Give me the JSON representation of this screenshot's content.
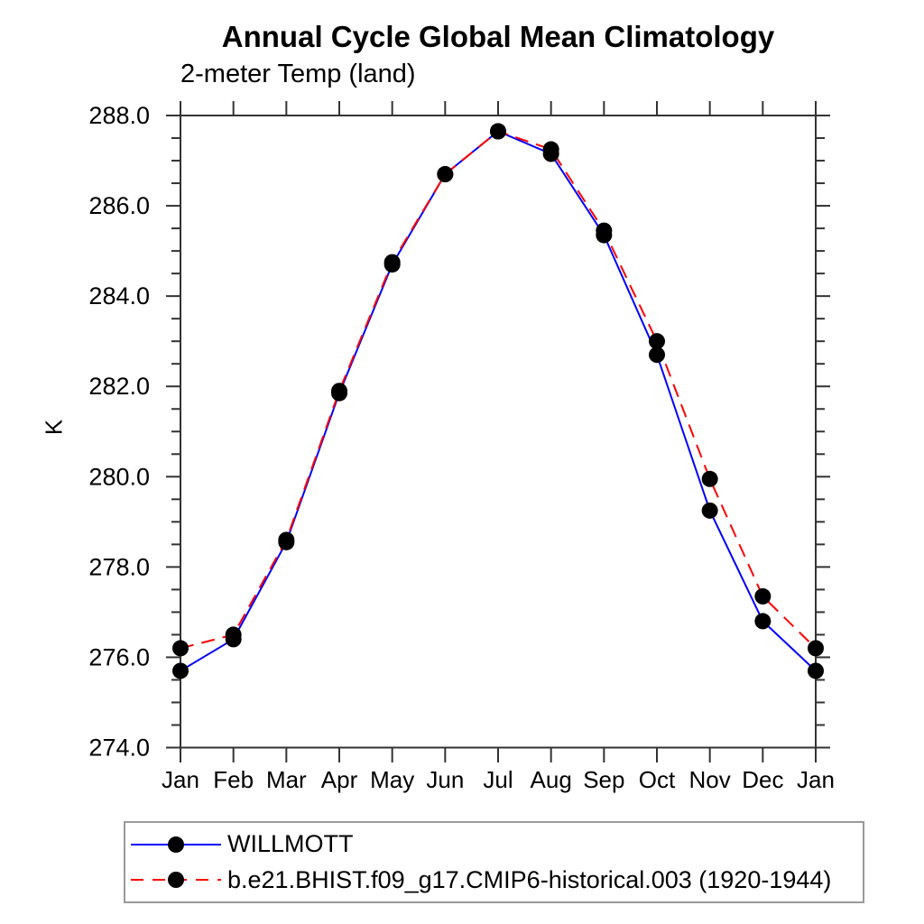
{
  "title": "Annual Cycle Global Mean Climatology",
  "subtitle": "2-meter Temp (land)",
  "ylabel": "K",
  "legend": {
    "items": [
      {
        "label": "WILLMOTT",
        "color": "#0000ff",
        "line_style": "solid",
        "marker": "filled-circle",
        "marker_color": "#000000"
      },
      {
        "label": "b.e21.BHIST.f09_g17.CMIP6-historical.003 (1920-1944)",
        "color": "#ff0000",
        "line_style": "dashed",
        "marker": "filled-circle",
        "marker_color": "#000000"
      }
    ]
  },
  "chart_data": {
    "type": "line",
    "title": "Annual Cycle Global Mean Climatology",
    "subtitle": "2-meter Temp (land)",
    "xlabel": "",
    "ylabel": "K",
    "x": [
      "Jan",
      "Feb",
      "Mar",
      "Apr",
      "May",
      "Jun",
      "Jul",
      "Aug",
      "Sep",
      "Oct",
      "Nov",
      "Dec",
      "Jan"
    ],
    "series": [
      {
        "name": "WILLMOTT",
        "color": "#0000ff",
        "line_style": "solid",
        "marker": "filled-circle",
        "marker_color": "#000000",
        "values": [
          275.7,
          276.4,
          278.55,
          281.85,
          284.7,
          286.7,
          287.65,
          287.15,
          285.35,
          282.7,
          279.25,
          276.8,
          275.7
        ]
      },
      {
        "name": "b.e21.BHIST.f09_g17.CMIP6-historical.003 (1920-1944)",
        "color": "#ff0000",
        "line_style": "dashed",
        "marker": "filled-circle",
        "marker_color": "#000000",
        "values": [
          276.2,
          276.5,
          278.6,
          281.9,
          284.75,
          286.7,
          287.65,
          287.25,
          285.45,
          283.0,
          279.95,
          277.35,
          276.2
        ]
      }
    ],
    "ylim": [
      274.0,
      288.0
    ],
    "ytick_step": 2.0,
    "yminor_step": 0.5,
    "ytick_labels": [
      "274.0",
      "276.0",
      "278.0",
      "280.0",
      "282.0",
      "284.0",
      "286.0",
      "288.0"
    ],
    "grid": false,
    "legend_position": "bottom-left-box",
    "frame_color": "#333333",
    "axis_units": "K"
  }
}
